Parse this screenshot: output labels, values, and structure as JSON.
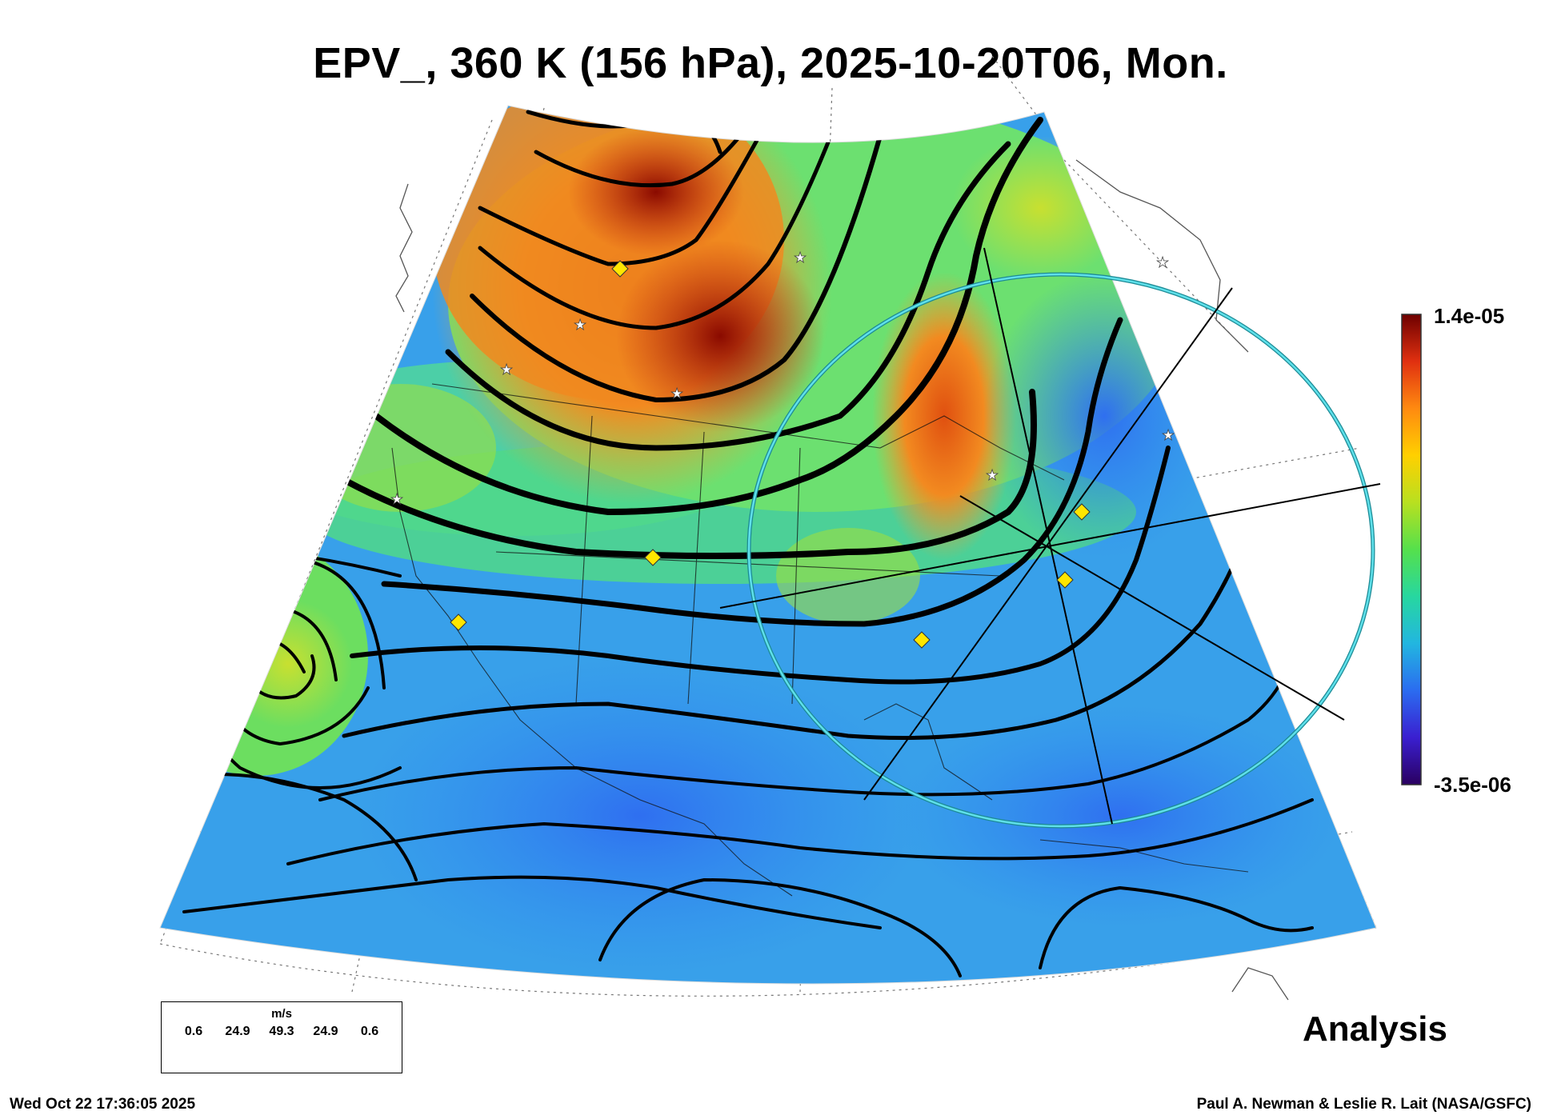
{
  "title": "EPV_, 360 K (156 hPa), 2025-10-20T06, Mon.",
  "colorbar": {
    "max_label": "1.4e-05",
    "min_label": "-3.5e-06",
    "stops": [
      "#2a0060",
      "#3a1fd0",
      "#2b6cf0",
      "#22b6e0",
      "#27d7a0",
      "#55e04c",
      "#b8e020",
      "#ffd000",
      "#ff8a10",
      "#e03010",
      "#6e0000"
    ]
  },
  "legend": {
    "unit": "m/s",
    "values": [
      "0.6",
      "24.9",
      "49.3",
      "24.9",
      "0.6"
    ]
  },
  "analysis_label": "Analysis",
  "timestamp": "Wed Oct 22 17:36:05 2025",
  "credit": "Paul A. Newman & Leslie R. Lait (NASA/GSFC)",
  "colors": {
    "high_pv": "#f2a030",
    "mid_pv": "#55d870",
    "low_pv": "#3a8cf0",
    "streamline": "#000000",
    "ring": "#37c5d0",
    "marker": "#ffe600"
  }
}
